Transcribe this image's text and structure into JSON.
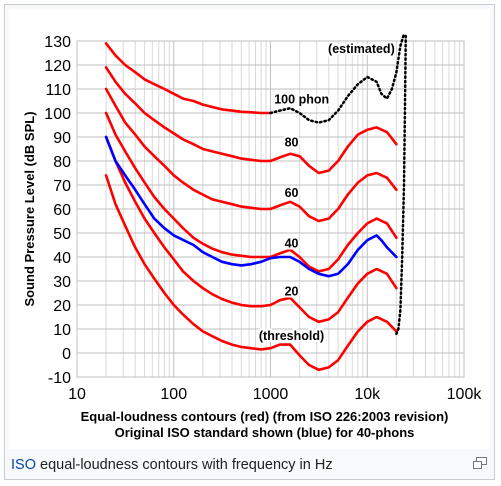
{
  "caption": {
    "link": "ISO",
    "text": " equal-loudness contours with frequency in Hz"
  },
  "magnify": {
    "icon": "enlarge-icon"
  },
  "chart_data": {
    "type": "line",
    "xscale": "log",
    "xlim": [
      10,
      100000
    ],
    "ylim": [
      -10,
      130
    ],
    "ylabel": "Sound Pressure Level (dB SPL)",
    "xlabel_line1": "Equal-loudness contours (red) (from ISO 226:2003 revision)",
    "xlabel_line2": "Original ISO standard shown (blue) for 40-phons",
    "xticks": [
      {
        "value": 10,
        "label": "10"
      },
      {
        "value": 100,
        "label": "100"
      },
      {
        "value": 1000,
        "label": "1000"
      },
      {
        "value": 10000,
        "label": "10k"
      },
      {
        "value": 100000,
        "label": "100k"
      }
    ],
    "yticks": [
      130,
      120,
      110,
      100,
      90,
      80,
      70,
      60,
      50,
      40,
      30,
      20,
      10,
      0,
      -10
    ],
    "grid": true,
    "colors": {
      "red": "#ff0000",
      "blue": "#0000ff",
      "dotted": "#000000"
    },
    "series": [
      {
        "color": "red",
        "style": "solid",
        "points": [
          [
            20,
            74
          ],
          [
            25,
            62
          ],
          [
            31.5,
            53
          ],
          [
            40,
            44
          ],
          [
            50,
            37
          ],
          [
            63,
            31
          ],
          [
            80,
            25
          ],
          [
            100,
            20
          ],
          [
            125,
            16
          ],
          [
            160,
            12
          ],
          [
            200,
            9
          ],
          [
            250,
            7
          ],
          [
            315,
            5
          ],
          [
            400,
            3.5
          ],
          [
            500,
            2.5
          ],
          [
            630,
            2
          ],
          [
            800,
            1.5
          ],
          [
            1000,
            2
          ],
          [
            1250,
            3.5
          ],
          [
            1600,
            3.5
          ],
          [
            2000,
            -1
          ],
          [
            2500,
            -5
          ],
          [
            3150,
            -7
          ],
          [
            4000,
            -6
          ],
          [
            5000,
            -3
          ],
          [
            6300,
            3
          ],
          [
            8000,
            9
          ],
          [
            10000,
            13
          ],
          [
            12500,
            15
          ],
          [
            16000,
            13
          ],
          [
            20000,
            9
          ]
        ]
      },
      {
        "color": "red",
        "style": "solid",
        "points": [
          [
            20,
            90
          ],
          [
            25,
            80
          ],
          [
            31.5,
            71
          ],
          [
            40,
            63
          ],
          [
            50,
            56
          ],
          [
            63,
            50
          ],
          [
            80,
            44
          ],
          [
            100,
            39
          ],
          [
            125,
            34
          ],
          [
            160,
            30
          ],
          [
            200,
            27
          ],
          [
            250,
            24.5
          ],
          [
            315,
            22.5
          ],
          [
            400,
            21
          ],
          [
            500,
            20
          ],
          [
            630,
            19.5
          ],
          [
            800,
            19.5
          ],
          [
            1000,
            20
          ],
          [
            1250,
            22
          ],
          [
            1600,
            23
          ],
          [
            2000,
            19
          ],
          [
            2500,
            15
          ],
          [
            3150,
            13
          ],
          [
            4000,
            14
          ],
          [
            5000,
            17
          ],
          [
            6300,
            23
          ],
          [
            8000,
            29
          ],
          [
            10000,
            33
          ],
          [
            12500,
            35
          ],
          [
            16000,
            33
          ],
          [
            20000,
            27
          ]
        ]
      },
      {
        "color": "red",
        "style": "solid",
        "points": [
          [
            20,
            100
          ],
          [
            25,
            91
          ],
          [
            31.5,
            84
          ],
          [
            40,
            77
          ],
          [
            50,
            71
          ],
          [
            63,
            65
          ],
          [
            80,
            60
          ],
          [
            100,
            56
          ],
          [
            125,
            52
          ],
          [
            160,
            48
          ],
          [
            200,
            45.5
          ],
          [
            250,
            43.5
          ],
          [
            315,
            42
          ],
          [
            400,
            41
          ],
          [
            500,
            40.5
          ],
          [
            630,
            40
          ],
          [
            800,
            40
          ],
          [
            1000,
            40
          ],
          [
            1250,
            41.5
          ],
          [
            1600,
            43
          ],
          [
            2000,
            40
          ],
          [
            2500,
            36
          ],
          [
            3150,
            34
          ],
          [
            4000,
            35
          ],
          [
            5000,
            39
          ],
          [
            6300,
            45
          ],
          [
            8000,
            50
          ],
          [
            10000,
            54
          ],
          [
            12500,
            56
          ],
          [
            16000,
            54
          ],
          [
            20000,
            48
          ]
        ]
      },
      {
        "color": "red",
        "style": "solid",
        "points": [
          [
            20,
            110
          ],
          [
            25,
            103
          ],
          [
            31.5,
            96
          ],
          [
            40,
            91
          ],
          [
            50,
            86
          ],
          [
            63,
            82
          ],
          [
            80,
            78
          ],
          [
            100,
            74
          ],
          [
            125,
            71
          ],
          [
            160,
            68
          ],
          [
            200,
            66
          ],
          [
            250,
            64
          ],
          [
            315,
            63
          ],
          [
            400,
            62
          ],
          [
            500,
            61
          ],
          [
            630,
            60.5
          ],
          [
            800,
            60
          ],
          [
            1000,
            60
          ],
          [
            1250,
            61.5
          ],
          [
            1600,
            63
          ],
          [
            2000,
            61
          ],
          [
            2500,
            57
          ],
          [
            3150,
            55
          ],
          [
            4000,
            56
          ],
          [
            5000,
            60
          ],
          [
            6300,
            66
          ],
          [
            8000,
            71
          ],
          [
            10000,
            74
          ],
          [
            12500,
            75
          ],
          [
            16000,
            73
          ],
          [
            20000,
            68
          ]
        ]
      },
      {
        "color": "red",
        "style": "solid",
        "points": [
          [
            20,
            119
          ],
          [
            25,
            113
          ],
          [
            31.5,
            108
          ],
          [
            40,
            104
          ],
          [
            50,
            100
          ],
          [
            63,
            97
          ],
          [
            80,
            94
          ],
          [
            100,
            91.5
          ],
          [
            125,
            89
          ],
          [
            160,
            87
          ],
          [
            200,
            85
          ],
          [
            250,
            84
          ],
          [
            315,
            83
          ],
          [
            400,
            82
          ],
          [
            500,
            81
          ],
          [
            630,
            80.5
          ],
          [
            800,
            80
          ],
          [
            1000,
            80
          ],
          [
            1250,
            81.5
          ],
          [
            1600,
            83
          ],
          [
            2000,
            82
          ],
          [
            2500,
            78
          ],
          [
            3150,
            75
          ],
          [
            4000,
            76
          ],
          [
            5000,
            80
          ],
          [
            6300,
            86
          ],
          [
            8000,
            91
          ],
          [
            10000,
            93
          ],
          [
            12500,
            94
          ],
          [
            16000,
            92
          ],
          [
            20000,
            87
          ]
        ]
      },
      {
        "color": "red",
        "style": "solid",
        "points": [
          [
            20,
            129
          ],
          [
            25,
            124
          ],
          [
            31.5,
            120
          ],
          [
            40,
            117
          ],
          [
            50,
            114
          ],
          [
            63,
            112
          ],
          [
            80,
            110
          ],
          [
            100,
            108
          ],
          [
            125,
            106
          ],
          [
            160,
            105
          ],
          [
            200,
            103.5
          ],
          [
            250,
            102.5
          ],
          [
            315,
            101.5
          ],
          [
            400,
            101
          ],
          [
            500,
            100.5
          ],
          [
            630,
            100.3
          ],
          [
            800,
            100
          ],
          [
            1000,
            100
          ]
        ]
      },
      {
        "color": "dotted",
        "style": "dotted",
        "points": [
          [
            1000,
            100
          ],
          [
            1250,
            101
          ],
          [
            1600,
            102
          ],
          [
            2000,
            100
          ],
          [
            2500,
            97
          ],
          [
            3150,
            96
          ],
          [
            4000,
            97
          ],
          [
            5000,
            101
          ],
          [
            6300,
            107
          ],
          [
            8000,
            112
          ],
          [
            10000,
            115
          ],
          [
            12500,
            113
          ],
          [
            14000,
            108
          ],
          [
            16000,
            106
          ],
          [
            18000,
            110
          ],
          [
            20000,
            117
          ],
          [
            22000,
            128
          ],
          [
            24000,
            133
          ]
        ]
      },
      {
        "color": "dotted",
        "style": "dotted",
        "points": [
          [
            20000,
            8
          ],
          [
            21000,
            10
          ],
          [
            22000,
            18
          ],
          [
            23000,
            40
          ],
          [
            24000,
            70
          ],
          [
            24500,
            100
          ],
          [
            25000,
            133
          ]
        ]
      },
      {
        "color": "blue",
        "style": "solid",
        "points": [
          [
            20,
            90
          ],
          [
            25,
            80
          ],
          [
            31.5,
            74
          ],
          [
            40,
            68
          ],
          [
            50,
            62
          ],
          [
            63,
            56
          ],
          [
            80,
            52
          ],
          [
            100,
            49
          ],
          [
            160,
            45
          ],
          [
            200,
            42
          ],
          [
            250,
            40
          ],
          [
            315,
            38
          ],
          [
            400,
            37
          ],
          [
            500,
            36.5
          ],
          [
            630,
            37
          ],
          [
            800,
            38
          ],
          [
            1000,
            39.5
          ],
          [
            1250,
            40
          ],
          [
            1600,
            40
          ],
          [
            2000,
            38
          ],
          [
            2500,
            35
          ],
          [
            3150,
            33
          ],
          [
            4000,
            32
          ],
          [
            5000,
            33
          ],
          [
            6300,
            37
          ],
          [
            8000,
            43
          ],
          [
            10000,
            47
          ],
          [
            12500,
            49
          ],
          [
            14000,
            47
          ],
          [
            16000,
            44
          ],
          [
            20000,
            40
          ]
        ]
      }
    ],
    "annotations": [
      {
        "text": "(estimated)",
        "x": 8700,
        "y": 125
      },
      {
        "text": "100 phon",
        "x": 2100,
        "y": 104
      },
      {
        "text": "80",
        "x": 1650,
        "y": 86
      },
      {
        "text": "60",
        "x": 1650,
        "y": 65
      },
      {
        "text": "40",
        "x": 1650,
        "y": 44
      },
      {
        "text": "20",
        "x": 1650,
        "y": 24
      },
      {
        "text": "(threshold)",
        "x": 1650,
        "y": 5.5
      }
    ]
  }
}
